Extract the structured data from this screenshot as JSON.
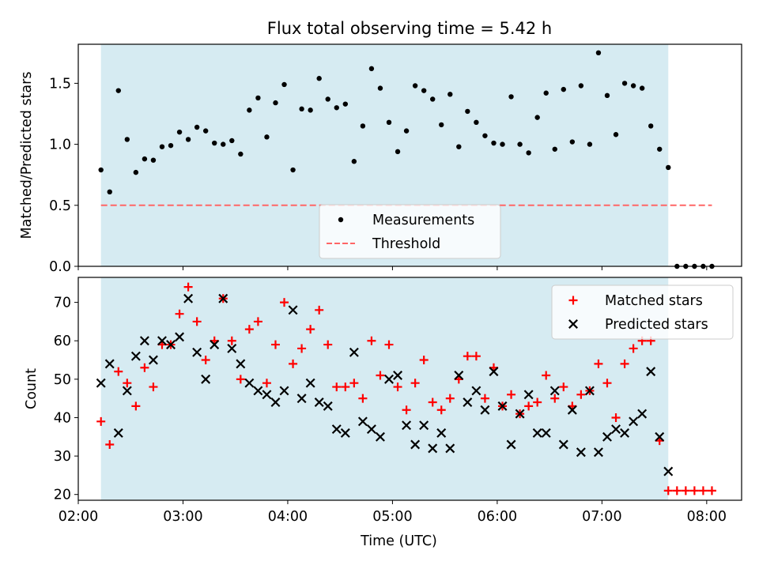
{
  "figure": {
    "title": "Flux total observing time = 5.42 h"
  },
  "chart_data": [
    {
      "type": "scatter",
      "ylabel": "Matched/Predicted stars",
      "ylim": [
        0,
        1.82
      ],
      "yticks": [
        "0.0",
        "0.5",
        "1.0",
        "1.5"
      ],
      "xlim": [
        "02:00",
        "08:20"
      ],
      "shaded_span": [
        "02:13",
        "07:38"
      ],
      "shade_color": "#add8e6",
      "legend_position": "lower-center",
      "series": [
        {
          "name": "Measurements",
          "marker": "dot",
          "color": "#000000",
          "points": [
            [
              "02:13",
              0.79
            ],
            [
              "02:18",
              0.61
            ],
            [
              "02:23",
              1.44
            ],
            [
              "02:28",
              1.04
            ],
            [
              "02:33",
              0.77
            ],
            [
              "02:38",
              0.88
            ],
            [
              "02:43",
              0.87
            ],
            [
              "02:48",
              0.98
            ],
            [
              "02:53",
              0.99
            ],
            [
              "02:58",
              1.1
            ],
            [
              "03:03",
              1.04
            ],
            [
              "03:08",
              1.14
            ],
            [
              "03:13",
              1.11
            ],
            [
              "03:18",
              1.01
            ],
            [
              "03:23",
              1.0
            ],
            [
              "03:28",
              1.03
            ],
            [
              "03:33",
              0.92
            ],
            [
              "03:38",
              1.28
            ],
            [
              "03:43",
              1.38
            ],
            [
              "03:48",
              1.06
            ],
            [
              "03:53",
              1.34
            ],
            [
              "03:58",
              1.49
            ],
            [
              "04:03",
              0.79
            ],
            [
              "04:08",
              1.29
            ],
            [
              "04:13",
              1.28
            ],
            [
              "04:18",
              1.54
            ],
            [
              "04:23",
              1.37
            ],
            [
              "04:28",
              1.3
            ],
            [
              "04:33",
              1.33
            ],
            [
              "04:38",
              0.86
            ],
            [
              "04:43",
              1.15
            ],
            [
              "04:48",
              1.62
            ],
            [
              "04:53",
              1.46
            ],
            [
              "04:58",
              1.18
            ],
            [
              "05:03",
              0.94
            ],
            [
              "05:08",
              1.11
            ],
            [
              "05:13",
              1.48
            ],
            [
              "05:18",
              1.44
            ],
            [
              "05:23",
              1.37
            ],
            [
              "05:28",
              1.16
            ],
            [
              "05:33",
              1.41
            ],
            [
              "05:38",
              0.98
            ],
            [
              "05:43",
              1.27
            ],
            [
              "05:48",
              1.18
            ],
            [
              "05:53",
              1.07
            ],
            [
              "05:58",
              1.01
            ],
            [
              "06:03",
              1.0
            ],
            [
              "06:08",
              1.39
            ],
            [
              "06:13",
              1.0
            ],
            [
              "06:18",
              0.93
            ],
            [
              "06:23",
              1.22
            ],
            [
              "06:28",
              1.42
            ],
            [
              "06:33",
              0.96
            ],
            [
              "06:38",
              1.45
            ],
            [
              "06:43",
              1.02
            ],
            [
              "06:48",
              1.48
            ],
            [
              "06:53",
              1.0
            ],
            [
              "06:58",
              1.75
            ],
            [
              "07:03",
              1.4
            ],
            [
              "07:08",
              1.08
            ],
            [
              "07:13",
              1.5
            ],
            [
              "07:18",
              1.48
            ],
            [
              "07:23",
              1.46
            ],
            [
              "07:28",
              1.15
            ],
            [
              "07:33",
              0.96
            ],
            [
              "07:38",
              0.81
            ],
            [
              "07:43",
              0.0
            ],
            [
              "07:48",
              0.0
            ],
            [
              "07:53",
              0.0
            ],
            [
              "07:58",
              0.0
            ],
            [
              "08:03",
              0.0
            ]
          ]
        },
        {
          "name": "Threshold",
          "marker": "dashed-line",
          "color": "#ff6666",
          "points": [
            [
              "02:13",
              0.5
            ],
            [
              "08:03",
              0.5
            ]
          ]
        }
      ]
    },
    {
      "type": "scatter",
      "ylabel": "Count",
      "xlabel": "Time (UTC)",
      "ylim": [
        18.5,
        76.5
      ],
      "yticks": [
        "20",
        "30",
        "40",
        "50",
        "60",
        "70"
      ],
      "xlim": [
        "02:00",
        "08:20"
      ],
      "xticks": [
        "02:00",
        "03:00",
        "04:00",
        "05:00",
        "06:00",
        "07:00",
        "08:00"
      ],
      "shaded_span": [
        "02:13",
        "07:38"
      ],
      "shade_color": "#add8e6",
      "legend_position": "top-right",
      "series": [
        {
          "name": "Matched stars",
          "marker": "plus",
          "color": "#ff0000",
          "points": [
            [
              "02:13",
              39
            ],
            [
              "02:18",
              33
            ],
            [
              "02:23",
              52
            ],
            [
              "02:28",
              49
            ],
            [
              "02:33",
              43
            ],
            [
              "02:38",
              53
            ],
            [
              "02:43",
              48
            ],
            [
              "02:48",
              59
            ],
            [
              "02:53",
              59
            ],
            [
              "02:58",
              67
            ],
            [
              "03:03",
              74
            ],
            [
              "03:08",
              65
            ],
            [
              "03:13",
              55
            ],
            [
              "03:18",
              60
            ],
            [
              "03:23",
              71
            ],
            [
              "03:28",
              60
            ],
            [
              "03:33",
              50
            ],
            [
              "03:38",
              63
            ],
            [
              "03:43",
              65
            ],
            [
              "03:48",
              49
            ],
            [
              "03:53",
              59
            ],
            [
              "03:58",
              70
            ],
            [
              "04:03",
              54
            ],
            [
              "04:08",
              58
            ],
            [
              "04:13",
              63
            ],
            [
              "04:18",
              68
            ],
            [
              "04:23",
              59
            ],
            [
              "04:28",
              48
            ],
            [
              "04:33",
              48
            ],
            [
              "04:38",
              49
            ],
            [
              "04:43",
              45
            ],
            [
              "04:48",
              60
            ],
            [
              "04:53",
              51
            ],
            [
              "04:58",
              59
            ],
            [
              "05:03",
              48
            ],
            [
              "05:08",
              42
            ],
            [
              "05:13",
              49
            ],
            [
              "05:18",
              55
            ],
            [
              "05:23",
              44
            ],
            [
              "05:28",
              42
            ],
            [
              "05:33",
              45
            ],
            [
              "05:38",
              50
            ],
            [
              "05:43",
              56
            ],
            [
              "05:48",
              56
            ],
            [
              "05:53",
              45
            ],
            [
              "05:58",
              53
            ],
            [
              "06:03",
              43
            ],
            [
              "06:08",
              46
            ],
            [
              "06:13",
              41
            ],
            [
              "06:18",
              43
            ],
            [
              "06:23",
              44
            ],
            [
              "06:28",
              51
            ],
            [
              "06:33",
              45
            ],
            [
              "06:38",
              48
            ],
            [
              "06:43",
              43
            ],
            [
              "06:48",
              46
            ],
            [
              "06:53",
              47
            ],
            [
              "06:58",
              54
            ],
            [
              "07:03",
              49
            ],
            [
              "07:08",
              40
            ],
            [
              "07:13",
              54
            ],
            [
              "07:18",
              58
            ],
            [
              "07:23",
              60
            ],
            [
              "07:28",
              60
            ],
            [
              "07:33",
              34
            ],
            [
              "07:38",
              21
            ],
            [
              "07:43",
              21
            ],
            [
              "07:48",
              21
            ],
            [
              "07:53",
              21
            ],
            [
              "07:58",
              21
            ],
            [
              "08:03",
              21
            ]
          ]
        },
        {
          "name": "Predicted stars",
          "marker": "x",
          "color": "#000000",
          "points": [
            [
              "02:13",
              49
            ],
            [
              "02:18",
              54
            ],
            [
              "02:23",
              36
            ],
            [
              "02:28",
              47
            ],
            [
              "02:33",
              56
            ],
            [
              "02:38",
              60
            ],
            [
              "02:43",
              55
            ],
            [
              "02:48",
              60
            ],
            [
              "02:53",
              59
            ],
            [
              "02:58",
              61
            ],
            [
              "03:03",
              71
            ],
            [
              "03:08",
              57
            ],
            [
              "03:13",
              50
            ],
            [
              "03:18",
              59
            ],
            [
              "03:23",
              71
            ],
            [
              "03:28",
              58
            ],
            [
              "03:33",
              54
            ],
            [
              "03:38",
              49
            ],
            [
              "03:43",
              47
            ],
            [
              "03:48",
              46
            ],
            [
              "03:53",
              44
            ],
            [
              "03:58",
              47
            ],
            [
              "04:03",
              68
            ],
            [
              "04:08",
              45
            ],
            [
              "04:13",
              49
            ],
            [
              "04:18",
              44
            ],
            [
              "04:23",
              43
            ],
            [
              "04:28",
              37
            ],
            [
              "04:33",
              36
            ],
            [
              "04:38",
              57
            ],
            [
              "04:43",
              39
            ],
            [
              "04:48",
              37
            ],
            [
              "04:53",
              35
            ],
            [
              "04:58",
              50
            ],
            [
              "05:03",
              51
            ],
            [
              "05:08",
              38
            ],
            [
              "05:13",
              33
            ],
            [
              "05:18",
              38
            ],
            [
              "05:23",
              32
            ],
            [
              "05:28",
              36
            ],
            [
              "05:33",
              32
            ],
            [
              "05:38",
              51
            ],
            [
              "05:43",
              44
            ],
            [
              "05:48",
              47
            ],
            [
              "05:53",
              42
            ],
            [
              "05:58",
              52
            ],
            [
              "06:03",
              43
            ],
            [
              "06:08",
              33
            ],
            [
              "06:13",
              41
            ],
            [
              "06:18",
              46
            ],
            [
              "06:23",
              36
            ],
            [
              "06:28",
              36
            ],
            [
              "06:33",
              47
            ],
            [
              "06:38",
              33
            ],
            [
              "06:43",
              42
            ],
            [
              "06:48",
              31
            ],
            [
              "06:53",
              47
            ],
            [
              "06:58",
              31
            ],
            [
              "07:03",
              35
            ],
            [
              "07:08",
              37
            ],
            [
              "07:13",
              36
            ],
            [
              "07:18",
              39
            ],
            [
              "07:23",
              41
            ],
            [
              "07:28",
              52
            ],
            [
              "07:33",
              35
            ],
            [
              "07:38",
              26
            ]
          ]
        }
      ]
    }
  ]
}
